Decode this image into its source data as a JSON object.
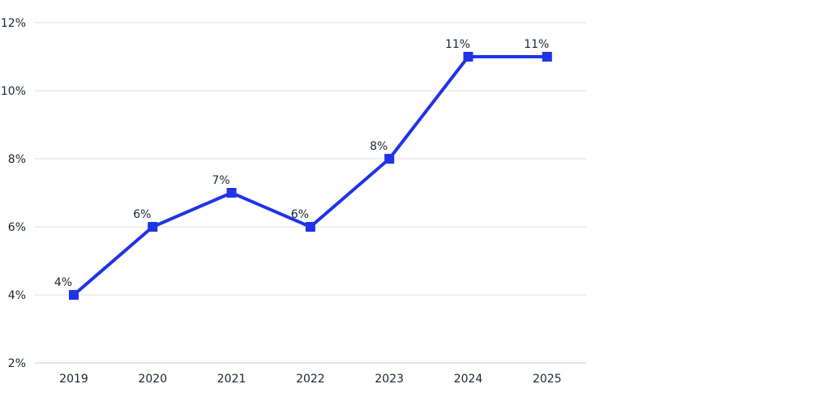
{
  "chart_data": {
    "type": "line",
    "categories": [
      "2019",
      "2020",
      "2021",
      "2022",
      "2023",
      "2024",
      "2025"
    ],
    "series": [
      {
        "values": [
          4,
          6,
          7,
          6,
          8,
          11,
          11
        ],
        "data_labels": [
          "4%",
          "6%",
          "7%",
          "6%",
          "8%",
          "11%",
          "11%"
        ]
      }
    ],
    "y_ticks": [
      2,
      4,
      6,
      8,
      10,
      12
    ],
    "y_tick_labels": [
      "2%",
      "4%",
      "6%",
      "8%",
      "10%",
      "12%"
    ],
    "ylim": [
      2,
      12
    ],
    "grid": true,
    "legend": "none",
    "marker": "square",
    "colors": {
      "series": "#1f33e8",
      "grid": "#dcdcdc",
      "text": "#1a2433"
    }
  }
}
